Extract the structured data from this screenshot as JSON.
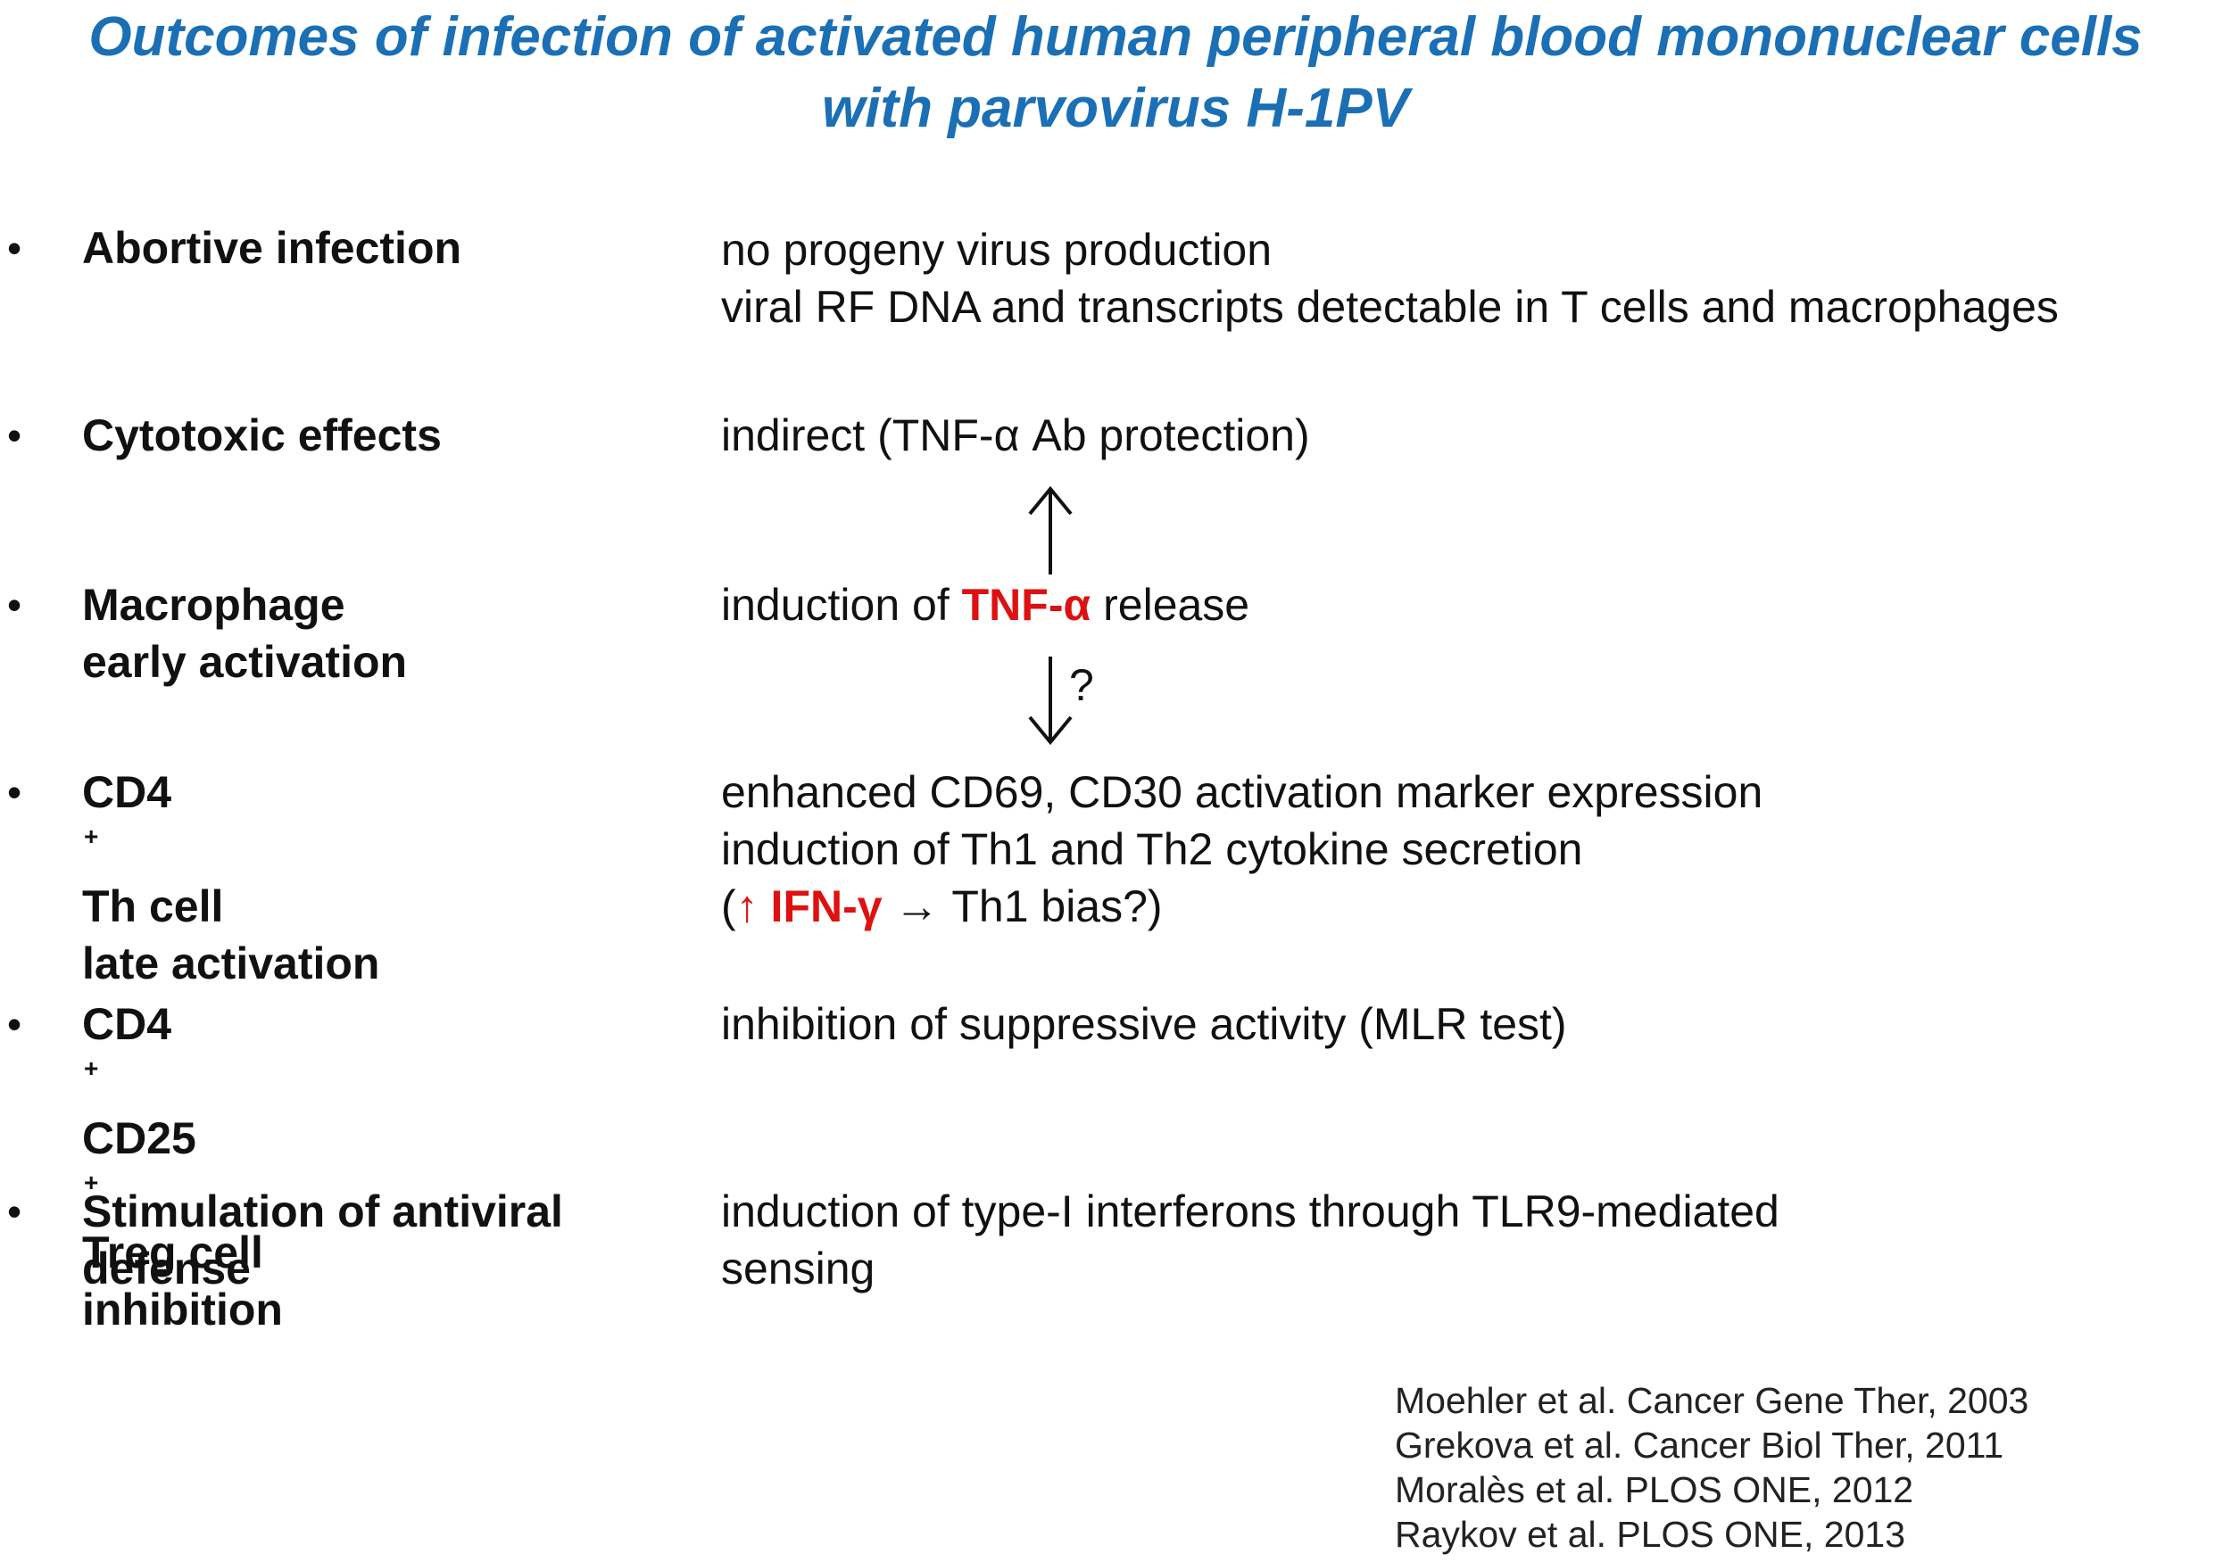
{
  "title": {
    "line1": "Outcomes of infection of activated human peripheral blood mononuclear cells",
    "line2": "with parvovirus H-1PV"
  },
  "bullet_char": "•",
  "rows": [
    {
      "label": [
        "Abortive infection"
      ],
      "desc": [
        "no progeny virus production",
        "viral RF DNA and transcripts detectable in T cells and macrophages"
      ]
    },
    {
      "label": [
        "Cytotoxic effects"
      ],
      "desc": [
        "indirect (TNF-α Ab protection)"
      ]
    },
    {
      "label": [
        "Macrophage",
        "early activation"
      ],
      "desc_prefix": "induction of ",
      "desc_highlight": "TNF-α",
      "desc_suffix": " release"
    },
    {
      "label_a": "CD4",
      "label_a_sup": "+",
      "label_b": " Th cell",
      "label_line2": "late activation",
      "desc": [
        "enhanced CD69, CD30 activation marker expression",
        "induction of Th1 and Th2 cytokine secretion"
      ],
      "desc3_open": "(",
      "desc3_up_arrow": "↑",
      "desc3_highlight": " IFN-γ",
      "desc3_rest": " → Th1 bias?)"
    },
    {
      "label_a": "CD4",
      "label_a_sup": "+",
      "label_b": " CD25",
      "label_b_sup": "+",
      "label_c": " Treg cell",
      "label_line2": "inhibition",
      "desc": [
        "inhibition of suppressive activity (MLR test)"
      ]
    },
    {
      "label": [
        "Stimulation of antiviral",
        "defense"
      ],
      "desc": [
        "induction of type-I interferons through TLR9-mediated",
        "sensing"
      ]
    }
  ],
  "arrow_question": "?",
  "references": [
    "Moehler et al. Cancer Gene Ther, 2003",
    "Grekova et al. Cancer Biol Ther, 2011",
    "Moralès et al. PLOS ONE, 2012",
    "Raykov et al. PLOS ONE, 2013"
  ],
  "colors": {
    "title": "#1a6fb5",
    "highlight": "#dd1111",
    "text": "#111111"
  }
}
